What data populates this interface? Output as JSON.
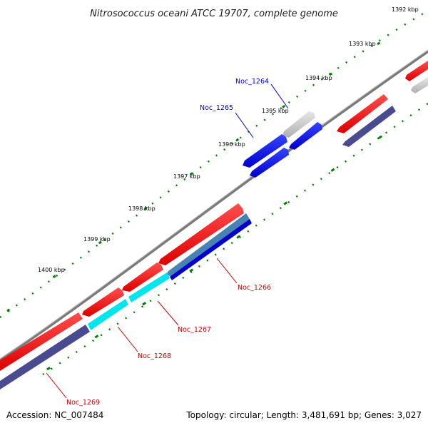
{
  "title": "Nitrosococcus oceani ATCC 19707, complete genome",
  "footer": {
    "accession": "Accession: NC_007484",
    "summary": "Topology: circular; Length: 3,481,691 bp; Genes: 3,027"
  },
  "colors": {
    "backbone": "#808080",
    "tick": "#008000",
    "label_blue": "#0000cc",
    "label_red": "#cc0000"
  },
  "tick_labels": [
    "1392 kbp",
    "1393 kbp",
    "1394 kbp",
    "1395 kbp",
    "1396 kbp",
    "1397 kbp",
    "1398 kbp",
    "1399 kbp",
    "1400 kbp"
  ],
  "gene_labels": [
    "Noc_1264",
    "Noc_1265",
    "Noc_1266",
    "Noc_1267",
    "Noc_1268",
    "Noc_1269"
  ]
}
